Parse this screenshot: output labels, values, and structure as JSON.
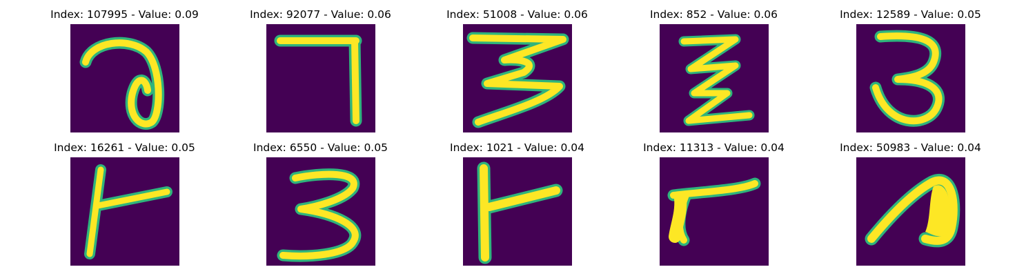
{
  "figure": {
    "colormap": [
      "#440154",
      "#31688e",
      "#35b779",
      "#fde725"
    ],
    "panels": [
      {
        "index": "107995",
        "value": "0.09",
        "title": "Index: 107995 - Value: 0.09",
        "digit_shape": "open loop glyph resembling a 2 / 'a'"
      },
      {
        "index": "92077",
        "value": "0.06",
        "title": "Index: 92077 - Value: 0.06",
        "digit_shape": "7"
      },
      {
        "index": "51008",
        "value": "0.06",
        "title": "Index: 51008 - Value: 0.06",
        "digit_shape": "3"
      },
      {
        "index": "852",
        "value": "0.06",
        "title": "Index: 852 - Value: 0.06",
        "digit_shape": "zigzag glyph"
      },
      {
        "index": "12589",
        "value": "0.05",
        "title": "Index: 12589 - Value: 0.05",
        "digit_shape": "3"
      },
      {
        "index": "16261",
        "value": "0.05",
        "title": "Index: 16261 - Value: 0.05",
        "digit_shape": "rotated T / 1"
      },
      {
        "index": "6550",
        "value": "0.05",
        "title": "Index: 6550 - Value: 0.05",
        "digit_shape": "3"
      },
      {
        "index": "1021",
        "value": "0.04",
        "title": "Index: 1021 - Value: 0.04",
        "digit_shape": "rotated T / 1"
      },
      {
        "index": "11313",
        "value": "0.04",
        "title": "Index: 11313 - Value: 0.04",
        "digit_shape": "7 / 1"
      },
      {
        "index": "50983",
        "value": "0.04",
        "title": "Index: 50983 - Value: 0.04",
        "digit_shape": "hook glyph"
      }
    ]
  }
}
